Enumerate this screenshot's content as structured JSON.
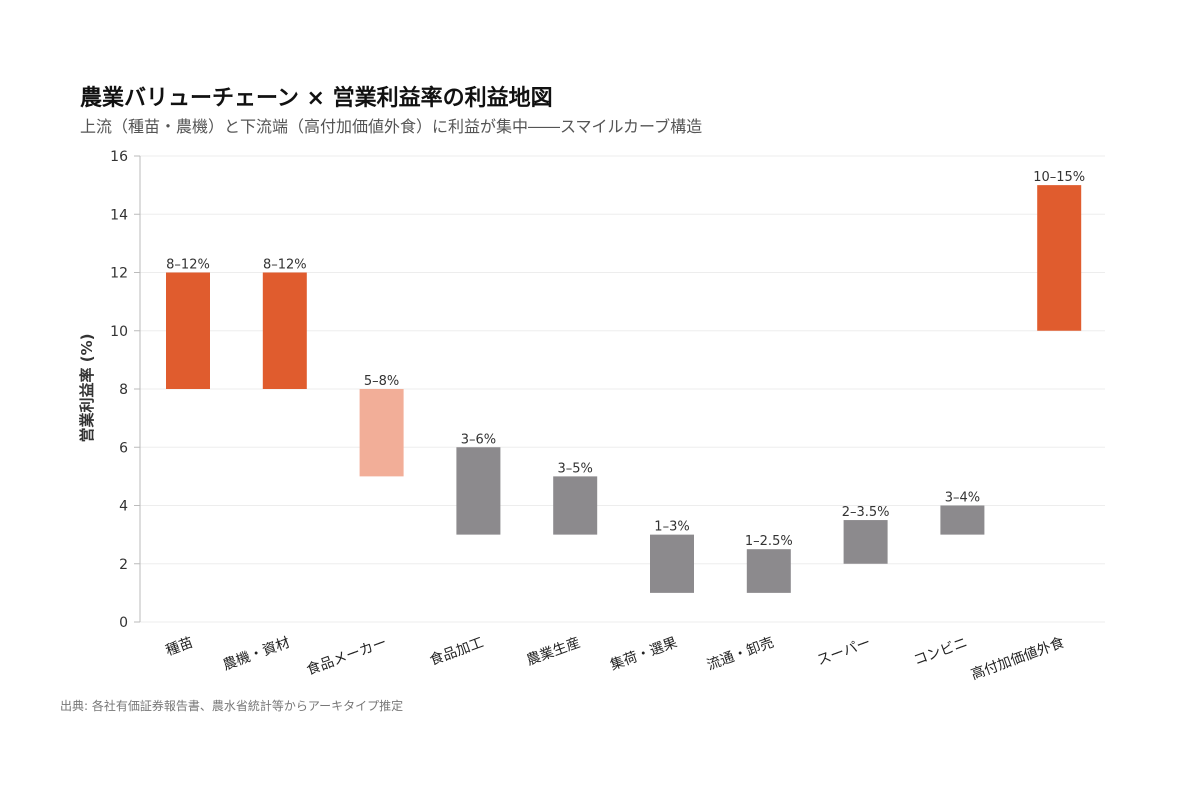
{
  "title": "農業バリューチェーン × 営業利益率の利益地図",
  "subtitle": "上流（種苗・農機）と下流端（高付加価値外食）に利益が集中――スマイルカーブ構造",
  "source": "出典: 各社有価証券報告書、農水省統計等からアーキタイプ推定",
  "colors": {
    "high": "#E05C2E",
    "mid": "#F2AE98",
    "low": "#8C8A8D",
    "grid": "#EDEDED",
    "axis": "#BBBBBB"
  },
  "chart_data": {
    "type": "bar",
    "subtype": "floating-range",
    "title": "農業バリューチェーン × 営業利益率の利益地図",
    "subtitle": "上流（種苗・農機）と下流端（高付加価値外食）に利益が集中――スマイルカーブ構造",
    "xlabel": "",
    "ylabel": "営業利益率 (%)",
    "ylim": [
      0,
      16
    ],
    "yticks": [
      0,
      2,
      4,
      6,
      8,
      10,
      12,
      14,
      16
    ],
    "grid": true,
    "categories": [
      "種苗",
      "農機・資材",
      "食品メーカー",
      "食品加工",
      "農業生産",
      "集荷・選果",
      "流通・卸売",
      "スーパー",
      "コンビニ",
      "高付加価値外食"
    ],
    "ranges": [
      {
        "low": 8,
        "high": 12,
        "label": "8–12%",
        "tier": "high"
      },
      {
        "low": 8,
        "high": 12,
        "label": "8–12%",
        "tier": "high"
      },
      {
        "low": 5,
        "high": 8,
        "label": "5–8%",
        "tier": "mid"
      },
      {
        "low": 3,
        "high": 6,
        "label": "3–6%",
        "tier": "low"
      },
      {
        "low": 3,
        "high": 5,
        "label": "3–5%",
        "tier": "low"
      },
      {
        "low": 1,
        "high": 3,
        "label": "1–3%",
        "tier": "low"
      },
      {
        "low": 1,
        "high": 2.5,
        "label": "1–2.5%",
        "tier": "low"
      },
      {
        "low": 2,
        "high": 3.5,
        "label": "2–3.5%",
        "tier": "low"
      },
      {
        "low": 3,
        "high": 4,
        "label": "3–4%",
        "tier": "low"
      },
      {
        "low": 10,
        "high": 15,
        "label": "10–15%",
        "tier": "high"
      }
    ]
  }
}
